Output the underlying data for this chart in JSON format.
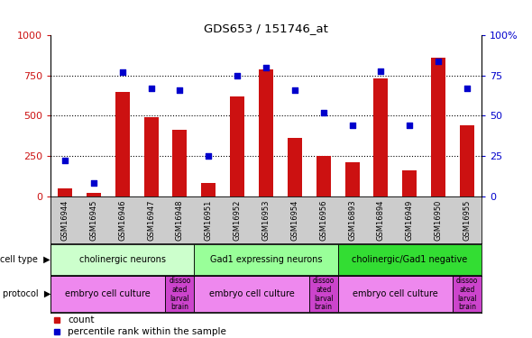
{
  "title": "GDS653 / 151746_at",
  "samples": [
    "GSM16944",
    "GSM16945",
    "GSM16946",
    "GSM16947",
    "GSM16948",
    "GSM16951",
    "GSM16952",
    "GSM16953",
    "GSM16954",
    "GSM16956",
    "GSM16893",
    "GSM16894",
    "GSM16949",
    "GSM16950",
    "GSM16955"
  ],
  "counts": [
    50,
    20,
    650,
    490,
    410,
    80,
    620,
    790,
    360,
    250,
    210,
    730,
    160,
    860,
    440
  ],
  "percentiles": [
    22,
    8,
    77,
    67,
    66,
    25,
    75,
    80,
    66,
    52,
    44,
    78,
    44,
    84,
    67
  ],
  "bar_color": "#cc1111",
  "dot_color": "#0000cc",
  "ylim_left": [
    0,
    1000
  ],
  "ylim_right": [
    0,
    100
  ],
  "yticks_left": [
    0,
    250,
    500,
    750,
    1000
  ],
  "yticks_right": [
    0,
    25,
    50,
    75,
    100
  ],
  "grid_color": "#000000",
  "background_color": "#ffffff",
  "tick_label_color_left": "#cc1111",
  "tick_label_color_right": "#0000cc",
  "sample_bg_color": "#cccccc",
  "cell_type_groups": [
    {
      "label": "cholinergic neurons",
      "start": 0,
      "end": 4,
      "color": "#ccffcc"
    },
    {
      "label": "Gad1 expressing neurons",
      "start": 5,
      "end": 9,
      "color": "#99ff99"
    },
    {
      "label": "cholinergic/Gad1 negative",
      "start": 10,
      "end": 14,
      "color": "#33dd33"
    }
  ],
  "protocol_groups": [
    {
      "label": "embryo cell culture",
      "start": 0,
      "end": 3,
      "color": "#ee88ee"
    },
    {
      "label": "dissoo\nated\nlarval\nbrain",
      "start": 4,
      "end": 4,
      "color": "#cc44cc"
    },
    {
      "label": "embryo cell culture",
      "start": 5,
      "end": 8,
      "color": "#ee88ee"
    },
    {
      "label": "dissoo\nated\nlarval\nbrain",
      "start": 9,
      "end": 9,
      "color": "#cc44cc"
    },
    {
      "label": "embryo cell culture",
      "start": 10,
      "end": 13,
      "color": "#ee88ee"
    },
    {
      "label": "dissoo\nated\nlarval\nbrain",
      "start": 14,
      "end": 14,
      "color": "#cc44cc"
    }
  ],
  "cell_type_label": "cell type",
  "protocol_label": "protocol",
  "legend_count_label": "count",
  "legend_pct_label": "percentile rank within the sample"
}
